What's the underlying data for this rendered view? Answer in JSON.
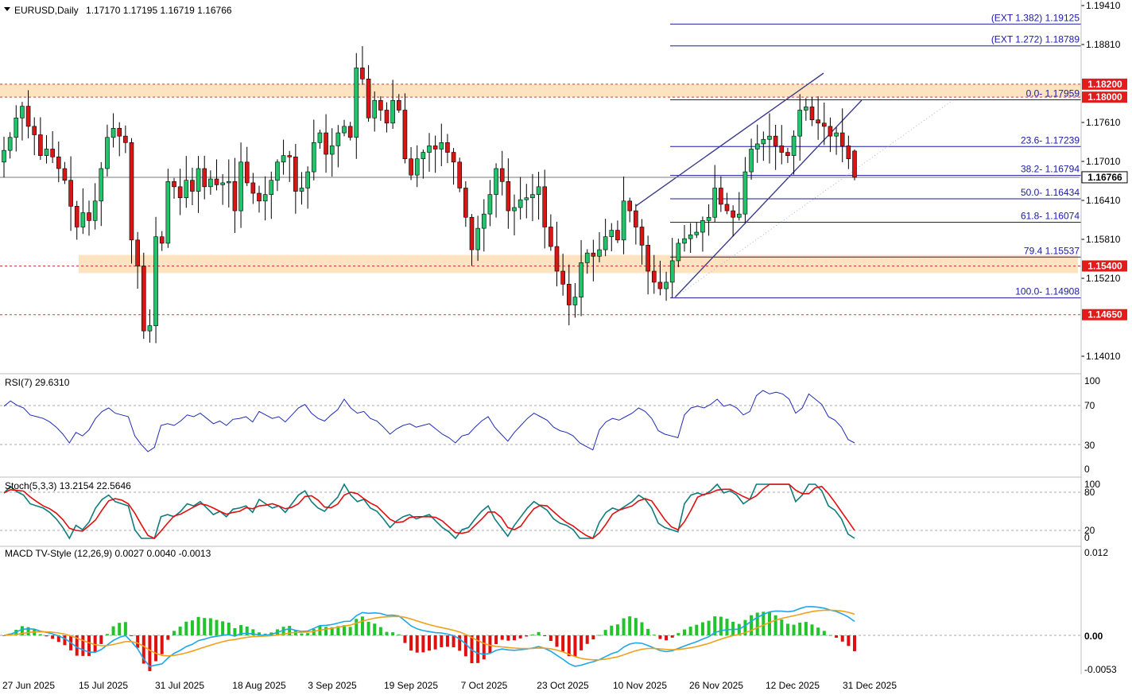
{
  "header": {
    "symbol_line": "EURUSD,Daily",
    "ohlc": "1.17170 1.17195 1.16719 1.16766"
  },
  "colors": {
    "bull": "#21c46a",
    "bear": "#d91616",
    "wick": "#000000",
    "fib_line": "#1a1aa6",
    "channel": "#3a3a8c",
    "zone": "#fde3bf",
    "zone_line": "#d23b3b",
    "rsi": "#1f2bb6",
    "stoch_main": "#0f7d7d",
    "stoch_signal": "#e01010",
    "macd_line": "#1ea7e6",
    "macd_signal": "#f0a11c",
    "hist_pos": "#21c42a",
    "hist_neg": "#e01010"
  },
  "price_axis": [
    "1.19410",
    "1.18810",
    "1.17610",
    "1.17010",
    "1.16410",
    "1.15810",
    "1.15210",
    "1.14010"
  ],
  "price_levels": [
    {
      "label": "1.18200",
      "value": 1.182
    },
    {
      "label": "1.18000",
      "value": 1.18
    },
    {
      "label": "1.16766",
      "value": 1.16766
    },
    {
      "label": "1.15400",
      "value": 1.154
    },
    {
      "label": "1.14650",
      "value": 1.1465
    }
  ],
  "zones": [
    {
      "from": 1.18,
      "to": 1.182
    },
    {
      "from": 1.1529,
      "to": 1.1557
    }
  ],
  "fib_levels": [
    {
      "label": "(EXT 1.382)  1.19125",
      "value": 1.19125
    },
    {
      "label": "(EXT 1.272)  1.18789",
      "value": 1.18789
    },
    {
      "label": "0.0- 1.17959",
      "value": 1.17959
    },
    {
      "label": "23.6- 1.17239",
      "value": 1.17239
    },
    {
      "label": "38.2- 1.16794",
      "value": 1.16794
    },
    {
      "label": "50.0- 1.16434",
      "value": 1.16434
    },
    {
      "label": "61.8- 1.16074",
      "value": 1.16074
    },
    {
      "label": "79.4 1.15537",
      "value": 1.15537
    },
    {
      "label": "100.0- 1.14908",
      "value": 1.14908
    }
  ],
  "x_labels": [
    "27 Jun 2025",
    "15 Jul 2025",
    "31 Jul 2025",
    "18 Aug 2025",
    "3 Sep 2025",
    "19 Sep 2025",
    "7 Oct 2025",
    "23 Oct 2025",
    "10 Nov 2025",
    "26 Nov 2025",
    "12 Dec 2025",
    "31 Dec 2025"
  ],
  "rsi": {
    "title": "RSI(7) 29.6310",
    "levels": [
      "100",
      "70",
      "30",
      "0"
    ]
  },
  "stoch": {
    "title": "Stoch(5,3,3) 13.2154 22.5646",
    "levels": [
      "100",
      "80",
      "20",
      "0"
    ]
  },
  "macd": {
    "title": "MACD TV-Style (12,26,9) 0.0027 0.0040 -0.0013",
    "levels": [
      "0.012",
      "0.00",
      "-0.0053"
    ]
  },
  "chart_data": {
    "type": "candlestick",
    "symbol": "EURUSD",
    "timeframe": "Daily",
    "last_bar": {
      "open": 1.1717,
      "high": 1.17195,
      "low": 1.16719,
      "close": 1.16766
    },
    "ylim": [
      1.1381,
      1.1941
    ],
    "closes": [
      1.1718,
      1.1738,
      1.1768,
      1.1786,
      1.1755,
      1.1742,
      1.171,
      1.172,
      1.1708,
      1.169,
      1.1672,
      1.1632,
      1.16,
      1.1622,
      1.161,
      1.164,
      1.169,
      1.1738,
      1.1752,
      1.174,
      1.173,
      1.158,
      1.154,
      1.144,
      1.1448,
      1.1585,
      1.1575,
      1.167,
      1.1662,
      1.1645,
      1.1672,
      1.1655,
      1.169,
      1.1662,
      1.1674,
      1.1665,
      1.1668,
      1.167,
      1.1625,
      1.17,
      1.1668,
      1.1652,
      1.164,
      1.165,
      1.1672,
      1.17,
      1.171,
      1.1708,
      1.1655,
      1.166,
      1.1685,
      1.173,
      1.1745,
      1.1712,
      1.1725,
      1.1745,
      1.1755,
      1.1738,
      1.1845,
      1.1828,
      1.1768,
      1.1795,
      1.178,
      1.176,
      1.1795,
      1.178,
      1.1705,
      1.168,
      1.1705,
      1.1715,
      1.1725,
      1.172,
      1.173,
      1.1715,
      1.17,
      1.166,
      1.1615,
      1.1565,
      1.1598,
      1.162,
      1.165,
      1.169,
      1.167,
      1.1625,
      1.163,
      1.1642,
      1.1645,
      1.165,
      1.1662,
      1.16,
      1.157,
      1.1532,
      1.1512,
      1.148,
      1.1492,
      1.1545,
      1.156,
      1.1555,
      1.1565,
      1.1585,
      1.1595,
      1.158,
      1.164,
      1.1625,
      1.16,
      1.1572,
      1.1532,
      1.1515,
      1.1505,
      1.1515,
      1.1548,
      1.1575,
      1.1582,
      1.1588,
      1.1592,
      1.161,
      1.1615,
      1.166,
      1.1635,
      1.1625,
      1.1615,
      1.162,
      1.1685,
      1.172,
      1.1728,
      1.1735,
      1.174,
      1.1725,
      1.1715,
      1.171,
      1.174,
      1.178,
      1.1785,
      1.1765,
      1.176,
      1.1755,
      1.174,
      1.1745,
      1.1725,
      1.1705,
      1.16766
    ],
    "rsi_values": [
      72,
      78,
      73,
      70,
      62,
      60,
      58,
      54,
      48,
      40,
      30,
      42,
      38,
      45,
      58,
      66,
      70,
      64,
      62,
      60,
      38,
      28,
      20,
      25,
      50,
      52,
      50,
      55,
      62,
      60,
      64,
      58,
      52,
      55,
      50,
      57,
      58,
      60,
      54,
      66,
      62,
      58,
      60,
      54,
      62,
      70,
      74,
      64,
      58,
      55,
      62,
      68,
      80,
      70,
      64,
      66,
      58,
      55,
      48,
      40,
      46,
      50,
      52,
      48,
      50,
      52,
      46,
      40,
      36,
      30,
      38,
      40,
      48,
      55,
      60,
      48,
      40,
      32,
      42,
      50,
      58,
      64,
      60,
      56,
      48,
      44,
      42,
      38,
      30,
      26,
      22,
      45,
      54,
      58,
      56,
      60,
      64,
      70,
      66,
      58,
      44,
      40,
      38,
      36,
      62,
      70,
      72,
      70,
      74,
      80,
      72,
      74,
      70,
      62,
      66,
      84,
      90,
      86,
      88,
      86,
      80,
      64,
      70,
      86,
      80,
      74,
      60,
      56,
      48,
      34,
      30
    ]
  }
}
